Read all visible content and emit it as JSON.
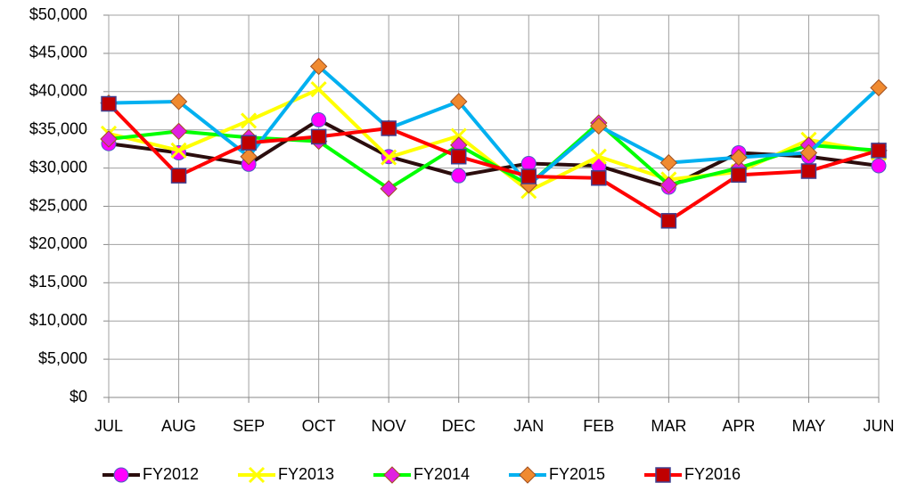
{
  "chart_data": {
    "type": "line",
    "categories": [
      "JUL",
      "AUG",
      "SEP",
      "OCT",
      "NOV",
      "DEC",
      "JAN",
      "FEB",
      "MAR",
      "APR",
      "MAY",
      "JUN"
    ],
    "series": [
      {
        "name": "FY2012",
        "color": "#2b0d0d",
        "marker": "circle",
        "marker_color": "#ff00ff",
        "values": [
          33200,
          32000,
          30500,
          36300,
          31500,
          29000,
          30600,
          30300,
          27500,
          32000,
          31500,
          30300
        ]
      },
      {
        "name": "FY2013",
        "color": "#ffff00",
        "marker": "x",
        "marker_color": "#ffff00",
        "values": [
          34500,
          32300,
          36200,
          40300,
          31400,
          34200,
          27000,
          31500,
          28500,
          29500,
          33700,
          32000
        ]
      },
      {
        "name": "FY2014",
        "color": "#00ff00",
        "marker": "diamond",
        "marker_color": "#e020e0",
        "values": [
          33800,
          34800,
          34000,
          33500,
          27300,
          33000,
          27800,
          35900,
          27800,
          30000,
          33000,
          32300
        ]
      },
      {
        "name": "FY2015",
        "color": "#00b0f0",
        "marker": "diamond",
        "marker_color": "#f08a30",
        "values": [
          38500,
          38700,
          31500,
          43300,
          35200,
          38700,
          27800,
          35500,
          30700,
          31400,
          32000,
          40500
        ]
      },
      {
        "name": "FY2016",
        "color": "#ff0000",
        "marker": "square",
        "marker_color": "#c00000",
        "values": [
          38400,
          29000,
          33300,
          34100,
          35200,
          31500,
          28900,
          28700,
          23100,
          29100,
          29600,
          32300
        ]
      }
    ],
    "ylim": [
      0,
      50000
    ],
    "yticks": [
      {
        "value": 0,
        "label": "$0"
      },
      {
        "value": 5000,
        "label": "$5,000"
      },
      {
        "value": 10000,
        "label": "$10,000"
      },
      {
        "value": 15000,
        "label": "$15,000"
      },
      {
        "value": 20000,
        "label": "$20,000"
      },
      {
        "value": 25000,
        "label": "$25,000"
      },
      {
        "value": 30000,
        "label": "$30,000"
      },
      {
        "value": 35000,
        "label": "$35,000"
      },
      {
        "value": 40000,
        "label": "$40,000"
      },
      {
        "value": 45000,
        "label": "$45,000"
      },
      {
        "value": 50000,
        "label": "$50,000"
      }
    ],
    "grid": true,
    "legend": "bottom"
  }
}
